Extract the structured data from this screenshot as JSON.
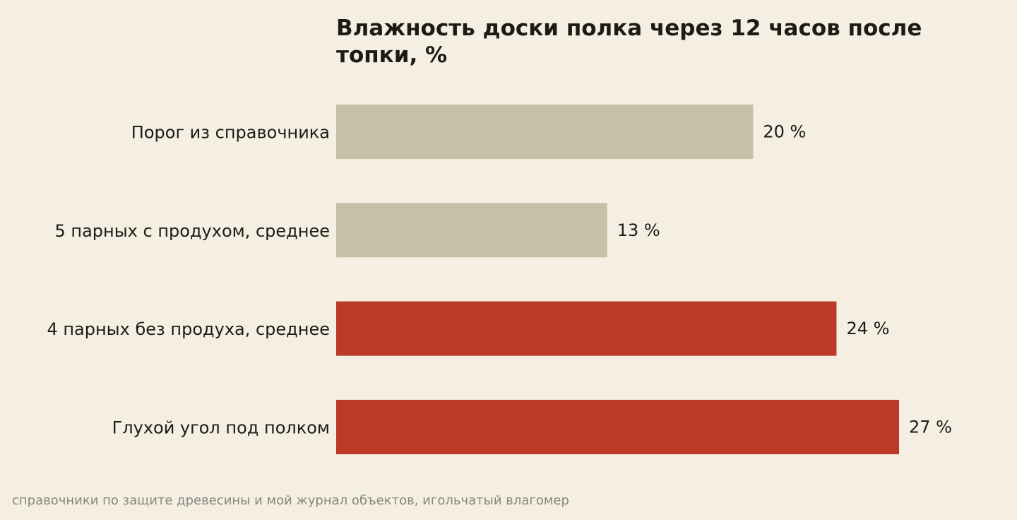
{
  "colors": {
    "background": "#f5efe3",
    "neutral_bar": "#c8bfa7",
    "highlight_bar": "#bb3b26",
    "text": "#1e1a14",
    "source_text": "#8a857b"
  },
  "chart_data": {
    "type": "bar",
    "orientation": "horizontal",
    "title_lines": [
      "Влажность доски полка через 12 часов после",
      "топки, %"
    ],
    "categories": [
      "Порог из справочника",
      "5 парных с продухом, среднее",
      "4 парных без продуха, среднее",
      "Глухой угол под полком"
    ],
    "values": [
      20,
      13,
      24,
      27
    ],
    "value_labels": [
      "20 %",
      "13 %",
      "24 %",
      "27 %"
    ],
    "highlighted": [
      false,
      false,
      true,
      true
    ],
    "xlim": [
      0,
      27
    ],
    "grid": false,
    "legend": "none",
    "source": "справочники по защите древесины и мой журнал объектов, игольчатый влагомер"
  }
}
